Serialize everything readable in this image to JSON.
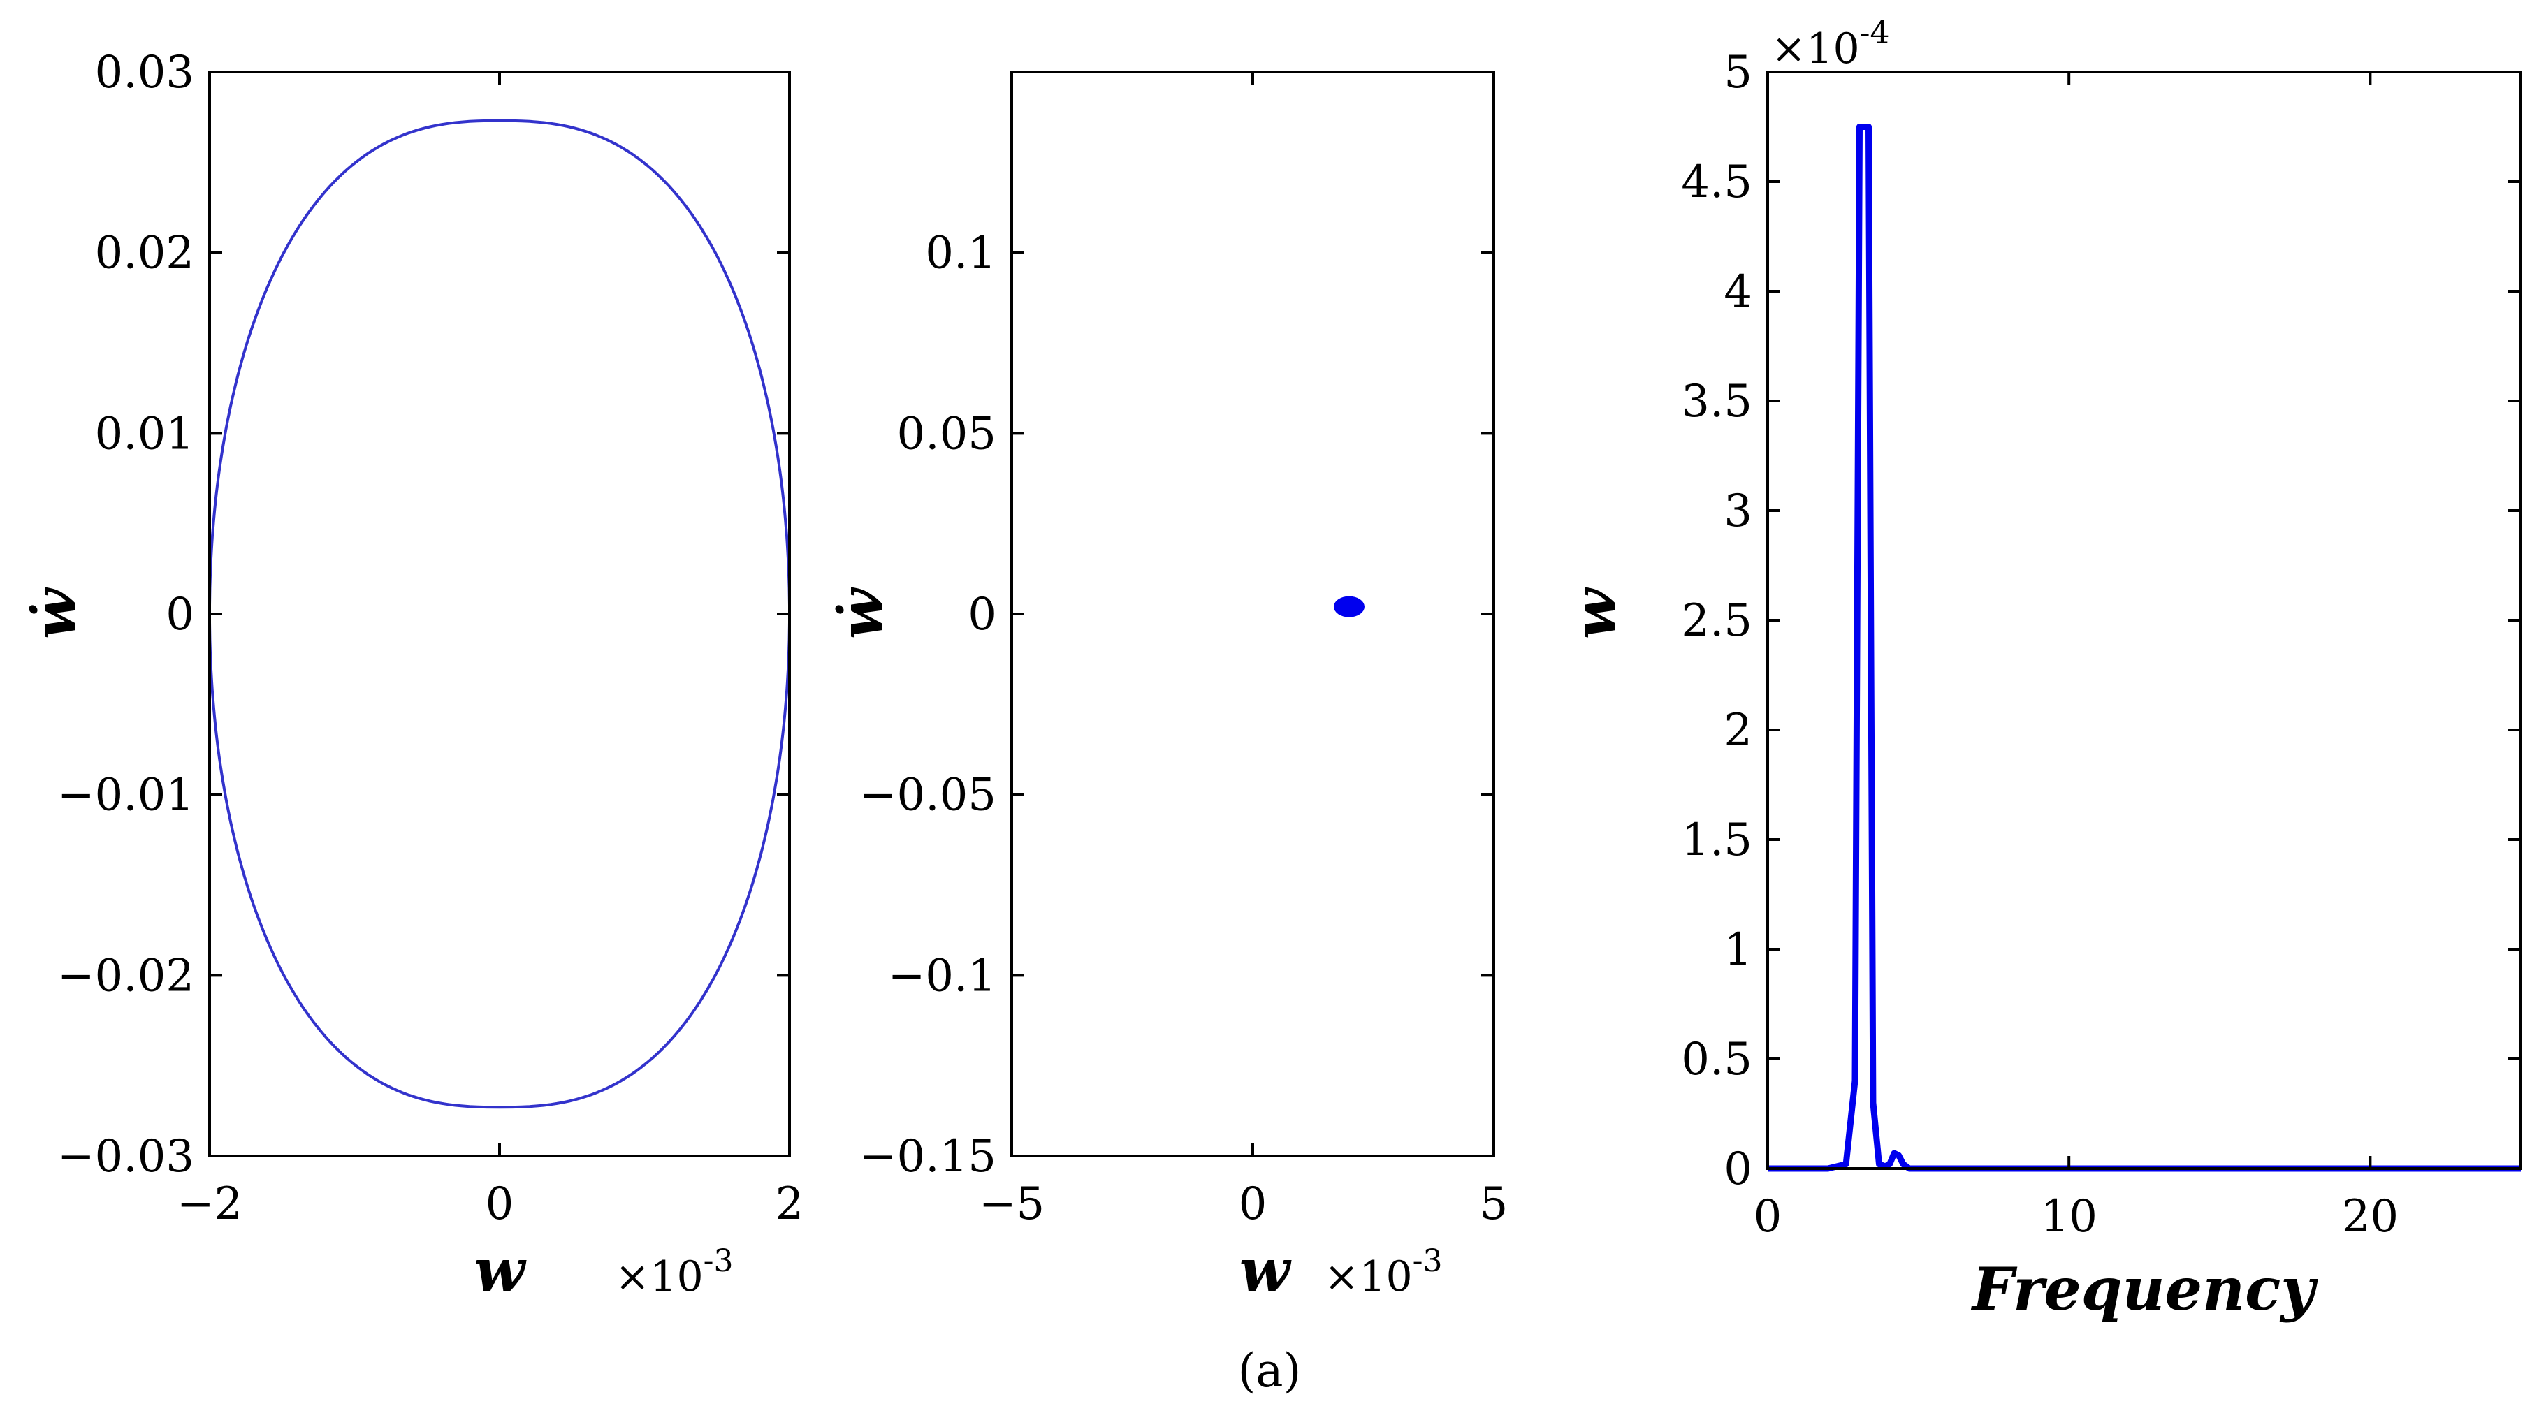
{
  "caption": "(a)",
  "chart_data": [
    {
      "type": "line",
      "plot": "phase portrait",
      "xlabel": "w",
      "ylabel": "ẇ",
      "x_multiplier": "×10",
      "x_multiplier_exp": "-3",
      "xlim": [
        -2,
        2
      ],
      "ylim": [
        -0.03,
        0.03
      ],
      "xticks": [
        "-2",
        "0",
        "2"
      ],
      "yticks": [
        "-0.03",
        "-0.02",
        "-0.01",
        "0",
        "0.01",
        "0.02",
        "0.03"
      ],
      "series": [
        {
          "shape": "closed orbit",
          "x_amplitude": 2.0,
          "y_amplitude": 0.0273,
          "exponent": 2.6
        }
      ],
      "color": "#3333cc"
    },
    {
      "type": "scatter",
      "plot": "poincare section",
      "xlabel": "w",
      "ylabel": "ẇ",
      "x_multiplier": "×10",
      "x_multiplier_exp": "-3",
      "xlim": [
        -5,
        5
      ],
      "ylim": [
        -0.15,
        0.15
      ],
      "xticks": [
        "-5",
        "0",
        "5"
      ],
      "yticks": [
        "-0.15",
        "-0.1",
        "-0.05",
        "0",
        "0.05",
        "0.1"
      ],
      "points": [
        {
          "x": 2.0,
          "y": 0.002
        }
      ],
      "color": "#0000ee"
    },
    {
      "type": "line",
      "plot": "frequency spectrum",
      "xlabel": "Frequency",
      "ylabel": "w",
      "y_multiplier": "×10",
      "y_multiplier_exp": "-4",
      "xlim": [
        0,
        25
      ],
      "ylim": [
        0,
        5
      ],
      "xticks": [
        "0",
        "10",
        "20"
      ],
      "yticks": [
        "0",
        "0.5",
        "1",
        "1.5",
        "2",
        "2.5",
        "3",
        "3.5",
        "4",
        "4.5",
        "5"
      ],
      "series": [
        {
          "x": [
            0,
            2.0,
            2.6,
            2.9,
            3.05,
            3.2,
            3.35,
            3.5,
            3.7,
            3.9,
            4.05,
            4.2,
            4.35,
            4.5,
            4.7,
            5.0,
            25
          ],
          "y": [
            0,
            0,
            0.02,
            0.4,
            4.75,
            4.75,
            4.75,
            0.3,
            0.02,
            0.01,
            0.02,
            0.07,
            0.06,
            0.02,
            0,
            0,
            0
          ]
        }
      ],
      "color": "#0000ee"
    }
  ]
}
